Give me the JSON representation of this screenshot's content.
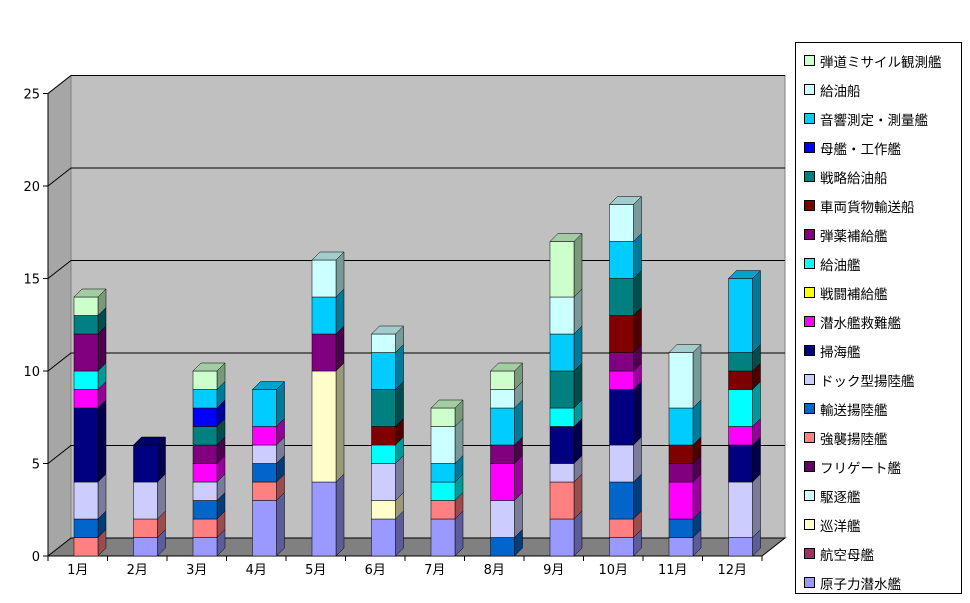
{
  "chart_data": {
    "type": "bar",
    "stacked": true,
    "style": "3d",
    "grid": true,
    "legend_position": "right",
    "ylim": [
      0,
      25
    ],
    "yticks": [
      0,
      5,
      10,
      15,
      20,
      25
    ],
    "categories": [
      "1月",
      "2月",
      "3月",
      "4月",
      "5月",
      "6月",
      "7月",
      "8月",
      "9月",
      "10月",
      "11月",
      "12月"
    ],
    "series": [
      {
        "name": "原子力潜水艦",
        "color": "#9999ff",
        "values": [
          0,
          1,
          1,
          3,
          4,
          2,
          2,
          0,
          2,
          1,
          1,
          1
        ]
      },
      {
        "name": "航空母艦",
        "color": "#993366",
        "values": [
          0,
          0,
          0,
          0,
          0,
          0,
          0,
          0,
          0,
          0,
          0,
          0
        ]
      },
      {
        "name": "巡洋艦",
        "color": "#ffffcc",
        "values": [
          0,
          0,
          0,
          0,
          6,
          1,
          0,
          0,
          0,
          0,
          0,
          0
        ]
      },
      {
        "name": "駆逐艦",
        "color": "#ccffff",
        "values": [
          0,
          0,
          0,
          0,
          0,
          0,
          0,
          0,
          0,
          0,
          0,
          0
        ]
      },
      {
        "name": "フリゲート艦",
        "color": "#660066",
        "values": [
          0,
          0,
          0,
          0,
          0,
          0,
          0,
          0,
          0,
          0,
          0,
          0
        ]
      },
      {
        "name": "強襲揚陸艦",
        "color": "#ff8080",
        "values": [
          1,
          1,
          1,
          1,
          0,
          0,
          1,
          0,
          2,
          1,
          0,
          0
        ]
      },
      {
        "name": "輸送揚陸艦",
        "color": "#0066cc",
        "values": [
          1,
          0,
          1,
          1,
          0,
          0,
          0,
          1,
          0,
          2,
          1,
          0
        ]
      },
      {
        "name": "ドック型揚陸艦",
        "color": "#ccccff",
        "values": [
          2,
          2,
          1,
          1,
          0,
          2,
          0,
          2,
          1,
          2,
          0,
          3
        ]
      },
      {
        "name": "掃海艦",
        "color": "#000080",
        "values": [
          4,
          2,
          0,
          0,
          0,
          0,
          0,
          0,
          2,
          3,
          0,
          2
        ]
      },
      {
        "name": "潜水艦救難艦",
        "color": "#ff00ff",
        "values": [
          1,
          0,
          1,
          1,
          0,
          0,
          0,
          2,
          0,
          1,
          2,
          1
        ]
      },
      {
        "name": "戦闘補給艦",
        "color": "#ffff00",
        "values": [
          0,
          0,
          0,
          0,
          0,
          0,
          0,
          0,
          0,
          0,
          0,
          0
        ]
      },
      {
        "name": "給油艦",
        "color": "#00ffff",
        "values": [
          1,
          0,
          0,
          0,
          0,
          1,
          1,
          0,
          1,
          0,
          0,
          2
        ]
      },
      {
        "name": "弾薬補給艦",
        "color": "#800080",
        "values": [
          2,
          0,
          1,
          0,
          2,
          0,
          0,
          1,
          0,
          1,
          1,
          0
        ]
      },
      {
        "name": "車両貨物輸送船",
        "color": "#800000",
        "values": [
          0,
          0,
          0,
          0,
          0,
          1,
          0,
          0,
          0,
          2,
          1,
          1
        ]
      },
      {
        "name": "戦略給油船",
        "color": "#008080",
        "values": [
          1,
          0,
          1,
          0,
          0,
          2,
          0,
          0,
          2,
          2,
          0,
          1
        ]
      },
      {
        "name": "母艦・工作艦",
        "color": "#0000ff",
        "values": [
          0,
          0,
          1,
          0,
          0,
          0,
          0,
          0,
          0,
          0,
          0,
          0
        ]
      },
      {
        "name": "音響測定・測量艦",
        "color": "#00ccff",
        "values": [
          0,
          0,
          1,
          2,
          2,
          2,
          1,
          2,
          2,
          2,
          2,
          4
        ]
      },
      {
        "name": "給油船",
        "color": "#ccffff",
        "values": [
          0,
          0,
          0,
          0,
          2,
          1,
          2,
          1,
          2,
          2,
          3,
          0
        ]
      },
      {
        "name": "弾道ミサイル観測艦",
        "color": "#ccffcc",
        "values": [
          1,
          0,
          1,
          0,
          0,
          0,
          1,
          1,
          3,
          0,
          0,
          0
        ]
      }
    ]
  }
}
